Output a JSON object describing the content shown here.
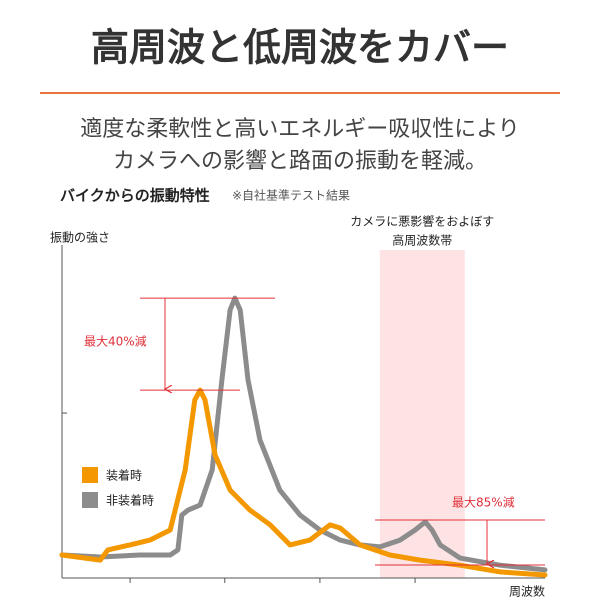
{
  "chart_data": {
    "type": "line",
    "title": "高周波と低周波をカバー",
    "subtitle": [
      "適度な柔軟性と高いエネルギー吸収性により",
      "カメラへの影響と路面の振動を軽減。"
    ],
    "chart_title": "バイクからの振動特性",
    "note": "※自社基準テスト結果",
    "ylabel": "振動の強さ",
    "xlabel": "周波数",
    "xlim": [
      0,
      100
    ],
    "ylim": [
      0,
      100
    ],
    "xticks": [
      14.1,
      33.7,
      53.4,
      73.1
    ],
    "yticks": [
      48.8
    ],
    "highlight_band": {
      "range": [
        65.8,
        83.4
      ],
      "label": [
        "カメラに悪影響をおよぼす",
        "高周波数帯"
      ],
      "color": "#fde3e3"
    },
    "annotations": [
      "最大40%減",
      "最大85%減"
    ],
    "series": [
      {
        "name": "装着時",
        "color": "#f39800",
        "x": [
          0,
          7.9,
          9.5,
          14.1,
          18.2,
          22.4,
          25.5,
          27.5,
          28.6,
          29.6,
          31.7,
          34.8,
          38.9,
          43.1,
          47.2,
          51.3,
          55.5,
          57.6,
          61.7,
          67.9,
          74.1,
          82.4,
          90.7,
          100
        ],
        "values": [
          6.8,
          5.3,
          8.3,
          9.8,
          11.2,
          14.2,
          32.0,
          52.7,
          55.6,
          52.7,
          36.4,
          26.0,
          20.1,
          15.7,
          9.8,
          11.2,
          15.7,
          14.8,
          9.8,
          6.8,
          5.3,
          3.8,
          1.8,
          0.9
        ]
      },
      {
        "name": "非装着時",
        "color": "#8c8c8c",
        "x": [
          0,
          7.9,
          16.1,
          22.4,
          24.0,
          24.8,
          26.1,
          28.6,
          31.1,
          33.1,
          34.8,
          35.8,
          36.9,
          38.5,
          41.0,
          45.1,
          49.3,
          53.4,
          57.6,
          61.7,
          65.8,
          70.0,
          73.1,
          75.2,
          76.6,
          78.3,
          82.4,
          90.7,
          100
        ],
        "values": [
          6.8,
          6.2,
          6.8,
          6.8,
          8.3,
          18.6,
          20.1,
          21.6,
          32.0,
          58.6,
          79.3,
          82.8,
          79.3,
          58.6,
          40.8,
          26.0,
          18.6,
          14.2,
          11.2,
          9.8,
          9.2,
          11.2,
          14.2,
          16.6,
          14.2,
          9.8,
          5.9,
          3.8,
          2.4
        ]
      }
    ]
  }
}
